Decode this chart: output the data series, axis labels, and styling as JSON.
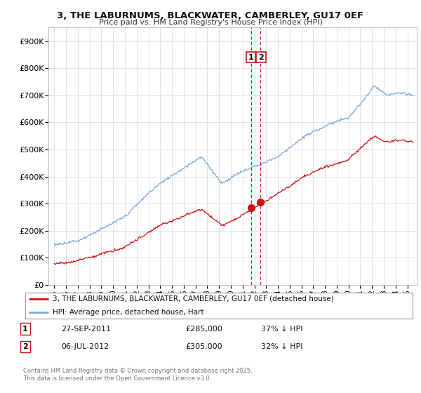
{
  "title": "3, THE LABURNUMS, BLACKWATER, CAMBERLEY, GU17 0EF",
  "subtitle": "Price paid vs. HM Land Registry's House Price Index (HPI)",
  "ylabel_ticks": [
    "£0",
    "£100K",
    "£200K",
    "£300K",
    "£400K",
    "£500K",
    "£600K",
    "£700K",
    "£800K",
    "£900K"
  ],
  "ytick_vals": [
    0,
    100000,
    200000,
    300000,
    400000,
    500000,
    600000,
    700000,
    800000,
    900000
  ],
  "ylim": [
    0,
    950000
  ],
  "xlim_start": 1994.5,
  "xlim_end": 2025.8,
  "line_color_hpi": "#7aaadd",
  "line_color_price": "#cc1111",
  "marker1_date": 2011.74,
  "marker2_date": 2012.51,
  "marker1_price": 285000,
  "marker2_price": 305000,
  "legend_label_price": "3, THE LABURNUMS, BLACKWATER, CAMBERLEY, GU17 0EF (detached house)",
  "legend_label_hpi": "HPI: Average price, detached house, Hart",
  "transaction1_date": "27-SEP-2011",
  "transaction1_price": "£285,000",
  "transaction1_note": "37% ↓ HPI",
  "transaction2_date": "06-JUL-2012",
  "transaction2_price": "£305,000",
  "transaction2_note": "32% ↓ HPI",
  "footer": "Contains HM Land Registry data © Crown copyright and database right 2025.\nThis data is licensed under the Open Government Licence v3.0.",
  "background_color": "#ffffff",
  "grid_color": "#dddddd",
  "xticks": [
    1995,
    1996,
    1997,
    1998,
    1999,
    2000,
    2001,
    2002,
    2003,
    2004,
    2005,
    2006,
    2007,
    2008,
    2009,
    2010,
    2011,
    2012,
    2013,
    2014,
    2015,
    2016,
    2017,
    2018,
    2019,
    2020,
    2021,
    2022,
    2023,
    2024,
    2025
  ]
}
